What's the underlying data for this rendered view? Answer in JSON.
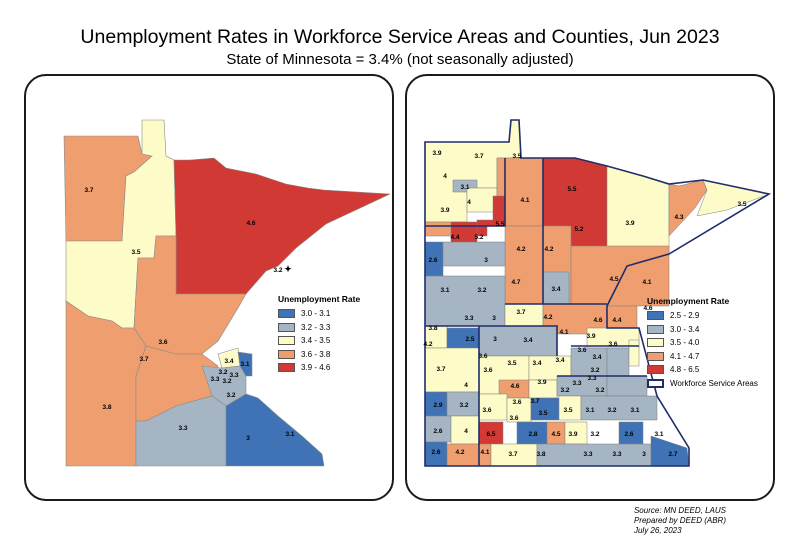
{
  "title": "Unemployment Rates in Workforce Service Areas and Counties, Jun 2023",
  "subtitle": "State of Minnesota = 3.4% (not seasonally adjusted)",
  "colors": {
    "c1": "#3f73b6",
    "c2": "#a6b5c4",
    "c3": "#fdfbc7",
    "c4": "#ee9e6f",
    "c5": "#d13a34",
    "border": "#1f2d6b"
  },
  "left_map": {
    "legend_title": "Unemployment Rate",
    "legend": [
      {
        "label": "3.0 - 3.1",
        "color": "#3f73b6"
      },
      {
        "label": "3.2 - 3.3",
        "color": "#a6b5c4"
      },
      {
        "label": "3.4 - 3.5",
        "color": "#fdfbc7"
      },
      {
        "label": "3.6 - 3.8",
        "color": "#ee9e6f"
      },
      {
        "label": "3.9 - 4.6",
        "color": "#d13a34"
      }
    ],
    "labels": [
      "3.7",
      "3.5",
      "4.6",
      "3.2",
      "3.6",
      "3.7",
      "3.4",
      "3.1",
      "3.2",
      "3.3",
      "3.2",
      "3.3",
      "3.2",
      "3.8",
      "3.3",
      "3",
      "3.1"
    ]
  },
  "right_map": {
    "legend_title": "Unemployment Rate",
    "legend": [
      {
        "label": "2.5 - 2.9",
        "color": "#3f73b6"
      },
      {
        "label": "3.0 - 3.4",
        "color": "#a6b5c4"
      },
      {
        "label": "3.5 - 4.0",
        "color": "#fdfbc7"
      },
      {
        "label": "4.1 - 4.7",
        "color": "#ee9e6f"
      },
      {
        "label": "4.8 - 6.5",
        "color": "#d13a34"
      }
    ],
    "boundary_label": "Workforce Service Areas",
    "labels": [
      "3.9",
      "3.7",
      "3.5",
      "4",
      "3.1",
      "4",
      "3.9",
      "4.1",
      "5.5",
      "5.2",
      "5.5",
      "3.9",
      "4.3",
      "3.5",
      "4.4",
      "5.2",
      "4.2",
      "4.2",
      "2.6",
      "3",
      "4.7",
      "4.5",
      "4.1",
      "3.1",
      "3.2",
      "3.4",
      "4.6",
      "3.7",
      "4.2",
      "3.3",
      "3",
      "3.8",
      "4.1",
      "4.6",
      "4.4",
      "2.5",
      "3",
      "3.4",
      "3.9",
      "3.6",
      "4.2",
      "3.6",
      "3.5",
      "3.4",
      "3.4",
      "3.6",
      "3.7",
      "3.6",
      "3.4",
      "3.2",
      "4",
      "4.6",
      "3.9",
      "3.3",
      "3.3",
      "3.2",
      "3.2",
      "2.9",
      "3.2",
      "3.6",
      "3.7",
      "3.6",
      "3.5",
      "3.1",
      "3.2",
      "3.1",
      "4",
      "3.6",
      "2.6",
      "3.5",
      "2.8",
      "4.5",
      "3.9",
      "3.2",
      "2.6",
      "3.1",
      "6.5",
      "2.6",
      "4.2",
      "4.1",
      "3.7",
      "3.8",
      "3.3",
      "3.3",
      "3",
      "2.7"
    ]
  },
  "source": {
    "line1": "Source: MN DEED, LAUS",
    "line2": "Prepared by DEED (ABR)",
    "line3": "July 26, 2023"
  }
}
